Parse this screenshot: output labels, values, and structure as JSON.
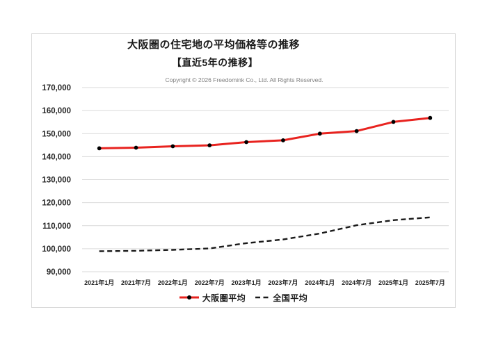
{
  "header": {
    "title": "大阪圏の住宅地の平均価格等の推移",
    "subtitle": "【直近5年の推移】",
    "copyright": "Copyright © 2026 Freedomink Co., Ltd. All Rights Reserved."
  },
  "colors": {
    "osaka_line": "#e8231f",
    "national_line": "#1a1a1a",
    "marker": "#000000",
    "gridline": "#d9d9d9",
    "axis_text": "#262626",
    "copyright_text": "#7f7f7f"
  },
  "chart_data": {
    "type": "line",
    "title": "大阪圏の住宅地の平均価格等の推移",
    "subtitle": "【直近5年の推移】",
    "categories": [
      "2021年1月",
      "2021年7月",
      "2022年1月",
      "2022年7月",
      "2023年1月",
      "2023年7月",
      "2024年1月",
      "2024年7月",
      "2025年1月",
      "2025年7月"
    ],
    "series": [
      {
        "name": "大阪圏平均",
        "style": "solid",
        "marker": "dot",
        "color": "#e8231f",
        "values": [
          143600,
          143900,
          144500,
          144900,
          146300,
          147100,
          150000,
          151100,
          155100,
          156800
        ]
      },
      {
        "name": "全国平均",
        "style": "dashed",
        "marker": "none",
        "color": "#1a1a1a",
        "values": [
          98900,
          99100,
          99500,
          100100,
          102400,
          104000,
          106600,
          110200,
          112400,
          113600
        ]
      }
    ],
    "xlabel": "",
    "ylabel": "",
    "ylim": [
      90000,
      170000
    ],
    "ytick_step": 10000,
    "ytick_labels": [
      "90,000",
      "100,000",
      "110,000",
      "120,000",
      "130,000",
      "140,000",
      "150,000",
      "160,000",
      "170,000"
    ],
    "grid": "horizontal",
    "legend_position": "bottom"
  }
}
